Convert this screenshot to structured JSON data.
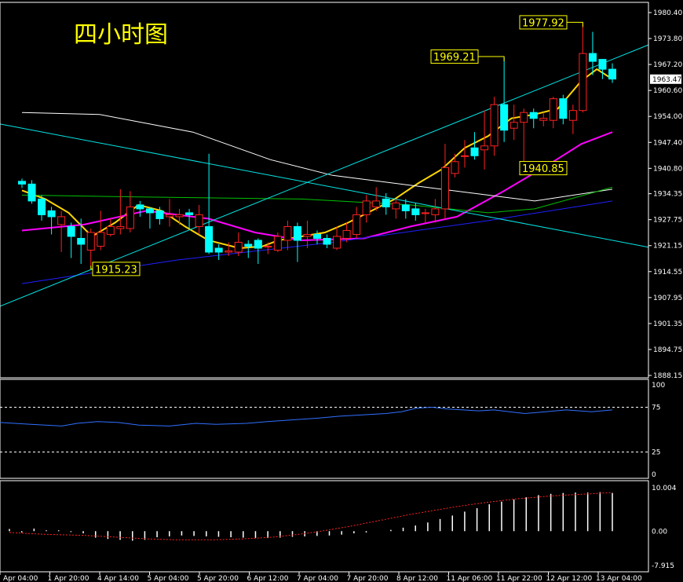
{
  "chart_data": {
    "type": "candlestick",
    "title": "四小时图",
    "price_axis": {
      "ylim": [
        1888.15,
        1980.4
      ],
      "ticks": [
        "1980.40",
        "1973.80",
        "1967.20",
        "1960.60",
        "1954.00",
        "1947.40",
        "1940.80",
        "1934.35",
        "1927.75",
        "1921.15",
        "1914.55",
        "1907.95",
        "1901.35",
        "1894.75",
        "1888.15"
      ],
      "current_price": "1963.47"
    },
    "time_labels": [
      "Apr 04:00",
      "1 Apr 20:00",
      "4 Apr 14:00",
      "5 Apr 04:00",
      "5 Apr 20:00",
      "6 Apr 12:00",
      "7 Apr 04:00",
      "7 Apr 20:00",
      "8 Apr 12:00",
      "11 Apr 06:00",
      "11 Apr 22:00",
      "12 Apr 12:00",
      "13 Apr 04:00"
    ],
    "annotations": [
      {
        "text": "1977.92",
        "value": 1977.92
      },
      {
        "text": "1969.21",
        "value": 1969.21
      },
      {
        "text": "1940.85",
        "value": 1940.85
      },
      {
        "text": "1915.23",
        "value": 1915.23
      }
    ],
    "candles": [
      [
        1937.5,
        1936.8,
        1938.2,
        1935.8
      ],
      [
        1936.8,
        1932.5,
        1937.8,
        1931.8
      ],
      [
        1933.0,
        1929.0,
        1934.0,
        1927.5
      ],
      [
        1930.0,
        1928.5,
        1931.0,
        1924.0
      ],
      [
        1926.5,
        1928.5,
        1930.0,
        1919.5
      ],
      [
        1926.0,
        1923.5,
        1927.0,
        1918.0
      ],
      [
        1923.0,
        1921.5,
        1928.0,
        1916.5
      ],
      [
        1920.0,
        1924.5,
        1925.5,
        1916.0
      ],
      [
        1921.0,
        1924.5,
        1930.0,
        1920.0
      ],
      [
        1924.0,
        1926.0,
        1928.0,
        1923.5
      ],
      [
        1925.5,
        1926.0,
        1935.5,
        1924.0
      ],
      [
        1925.5,
        1931.0,
        1935.0,
        1924.5
      ],
      [
        1931.5,
        1930.5,
        1932.5,
        1928.5
      ],
      [
        1930.5,
        1929.5,
        1931.0,
        1925.5
      ],
      [
        1930.0,
        1928.0,
        1931.0,
        1926.5
      ],
      [
        1928.5,
        1929.0,
        1933.0,
        1926.0
      ],
      [
        1928.5,
        1929.0,
        1930.5,
        1926.5
      ],
      [
        1929.5,
        1929.0,
        1930.5,
        1925.5
      ],
      [
        1926.0,
        1929.0,
        1931.5,
        1924.0
      ],
      [
        1926.0,
        1919.5,
        1944.5,
        1919.0
      ],
      [
        1920.5,
        1919.5,
        1921.5,
        1917.5
      ],
      [
        1919.5,
        1919.8,
        1922.0,
        1918.5
      ],
      [
        1919.5,
        1922.0,
        1924.5,
        1918.5
      ],
      [
        1921.5,
        1921.0,
        1922.5,
        1918.0
      ],
      [
        1922.5,
        1920.5,
        1923.0,
        1916.5
      ],
      [
        1921.0,
        1921.0,
        1922.0,
        1919.0
      ],
      [
        1920.0,
        1923.5,
        1924.5,
        1919.5
      ],
      [
        1922.5,
        1926.0,
        1927.5,
        1920.0
      ],
      [
        1926.0,
        1922.5,
        1927.0,
        1917.0
      ],
      [
        1923.5,
        1924.0,
        1927.5,
        1920.5
      ],
      [
        1924.0,
        1923.0,
        1925.0,
        1921.5
      ],
      [
        1923.0,
        1921.5,
        1924.0,
        1920.5
      ],
      [
        1920.5,
        1923.5,
        1926.0,
        1920.0
      ],
      [
        1923.0,
        1925.0,
        1927.0,
        1922.0
      ],
      [
        1924.0,
        1929.0,
        1931.0,
        1923.0
      ],
      [
        1929.0,
        1932.5,
        1934.0,
        1927.0
      ],
      [
        1931.0,
        1932.5,
        1936.0,
        1930.0
      ],
      [
        1933.0,
        1931.0,
        1934.5,
        1929.0
      ],
      [
        1930.5,
        1932.0,
        1933.0,
        1928.0
      ],
      [
        1931.5,
        1930.0,
        1933.0,
        1928.0
      ],
      [
        1930.5,
        1929.0,
        1932.0,
        1927.5
      ],
      [
        1929.5,
        1929.5,
        1930.5,
        1927.0
      ],
      [
        1929.0,
        1930.5,
        1933.0,
        1927.0
      ],
      [
        1930.5,
        1941.0,
        1947.0,
        1928.0
      ],
      [
        1939.5,
        1942.5,
        1944.5,
        1938.5
      ],
      [
        1944.0,
        1944.0,
        1948.0,
        1941.0
      ],
      [
        1946.0,
        1944.0,
        1950.0,
        1943.0
      ],
      [
        1945.5,
        1946.5,
        1955.5,
        1940.5
      ],
      [
        1946.5,
        1957.0,
        1959.0,
        1944.0
      ],
      [
        1957.0,
        1950.5,
        1969.0,
        1947.5
      ],
      [
        1951.0,
        1952.5,
        1957.0,
        1948.0
      ],
      [
        1952.5,
        1955.0,
        1956.0,
        1940.8
      ],
      [
        1955.0,
        1953.5,
        1956.0,
        1951.0
      ],
      [
        1953.0,
        1953.5,
        1955.0,
        1951.5
      ],
      [
        1953.0,
        1958.5,
        1959.0,
        1951.0
      ],
      [
        1958.5,
        1953.5,
        1959.5,
        1952.0
      ],
      [
        1953.0,
        1955.5,
        1957.0,
        1949.5
      ],
      [
        1955.5,
        1970.0,
        1977.9,
        1955.0
      ],
      [
        1970.0,
        1968.0,
        1975.5,
        1964.5
      ],
      [
        1968.5,
        1966.0,
        1968.5,
        1963.5
      ],
      [
        1966.0,
        1963.5,
        1967.5,
        1962.5
      ]
    ],
    "moving_averages": [
      {
        "color": "#ffd700",
        "values": [
          [
            0,
            1935.2
          ],
          [
            3,
            1933.0
          ],
          [
            6,
            1929.5
          ],
          [
            9,
            1923.5
          ],
          [
            12,
            1927.0
          ],
          [
            15,
            1931.5
          ],
          [
            18,
            1930.0
          ],
          [
            21,
            1926.0
          ],
          [
            24,
            1922.5
          ],
          [
            28,
            1920.5
          ],
          [
            31,
            1921.0
          ],
          [
            33,
            1922.5
          ],
          [
            36,
            1923.5
          ],
          [
            39,
            1924.5
          ],
          [
            42,
            1927.0
          ],
          [
            45,
            1930.0
          ],
          [
            48,
            1933.0
          ],
          [
            51,
            1937.0
          ],
          [
            54,
            1940.5
          ],
          [
            57,
            1946.0
          ],
          [
            60,
            1949.0
          ],
          [
            63,
            1953.5
          ],
          [
            66,
            1954.5
          ],
          [
            69,
            1956.0
          ],
          [
            72,
            1963.0
          ],
          [
            74,
            1966.0
          ],
          [
            76,
            1963.5
          ]
        ]
      },
      {
        "color": "#ff00ff",
        "values": [
          [
            0,
            1925.0
          ],
          [
            8,
            1926.5
          ],
          [
            16,
            1930.0
          ],
          [
            24,
            1928.0
          ],
          [
            30,
            1924.5
          ],
          [
            36,
            1922.5
          ],
          [
            44,
            1923.0
          ],
          [
            50,
            1926.0
          ],
          [
            56,
            1928.5
          ],
          [
            62,
            1935.0
          ],
          [
            68,
            1942.0
          ],
          [
            72,
            1947.0
          ],
          [
            76,
            1950.0
          ]
        ]
      },
      {
        "color": "#ffffff",
        "values": [
          [
            0,
            1955.0
          ],
          [
            10,
            1954.5
          ],
          [
            22,
            1950.0
          ],
          [
            32,
            1943.0
          ],
          [
            40,
            1939.0
          ],
          [
            50,
            1936.5
          ],
          [
            60,
            1934.0
          ],
          [
            66,
            1932.5
          ],
          [
            76,
            1935.5
          ]
        ]
      },
      {
        "color": "#00c000",
        "values": [
          [
            0,
            1934.0
          ],
          [
            16,
            1933.5
          ],
          [
            36,
            1933.0
          ],
          [
            50,
            1931.5
          ],
          [
            60,
            1929.5
          ],
          [
            66,
            1930.5
          ],
          [
            76,
            1936.0
          ]
        ]
      },
      {
        "color": "#2020ff",
        "values": [
          [
            0,
            1911.5
          ],
          [
            20,
            1917.5
          ],
          [
            40,
            1922.0
          ],
          [
            60,
            1927.5
          ],
          [
            76,
            1932.5
          ]
        ]
      },
      {
        "color": "#00e5e5",
        "values": [
          [
            0,
            1951.0
          ],
          [
            76,
            1922.5
          ]
        ]
      },
      {
        "color": "#00e5e5",
        "values": [
          [
            0,
            1908.0
          ],
          [
            76,
            1968.5
          ]
        ]
      }
    ],
    "rsi": {
      "ylim": [
        0,
        100
      ],
      "ticks": [
        "100",
        "75",
        "25",
        "0"
      ],
      "levels": [
        75,
        25
      ],
      "values": [
        [
          0,
          58
        ],
        [
          6,
          56
        ],
        [
          12,
          54
        ],
        [
          15,
          57
        ],
        [
          19,
          59
        ],
        [
          23,
          58
        ],
        [
          27,
          55
        ],
        [
          33,
          54
        ],
        [
          38,
          57
        ],
        [
          42,
          56
        ],
        [
          48,
          57
        ],
        [
          52,
          59
        ],
        [
          57,
          61
        ],
        [
          62,
          63
        ],
        [
          66,
          65
        ],
        [
          69,
          66
        ],
        [
          72,
          67
        ],
        [
          75,
          68
        ],
        [
          78,
          70
        ],
        [
          81,
          74
        ],
        [
          84,
          75
        ],
        [
          87,
          73
        ],
        [
          90,
          72
        ],
        [
          93,
          71
        ],
        [
          96,
          72
        ],
        [
          99,
          70
        ],
        [
          102,
          68
        ],
        [
          106,
          70
        ],
        [
          110,
          72
        ],
        [
          115,
          70
        ],
        [
          119,
          72
        ]
      ]
    },
    "histogram": {
      "ylim": [
        -7.915,
        10.004
      ],
      "ticks": [
        "10.004",
        "0.00",
        "-7.915"
      ],
      "bars": [
        0.5,
        -0.3,
        0.6,
        0.2,
        0.2,
        -0.2,
        -0.5,
        -1.5,
        -1.8,
        -2.0,
        -2.2,
        -2.0,
        -1.4,
        -1.2,
        -1.0,
        -1.1,
        -1.2,
        -1.3,
        -1.4,
        -1.5,
        -1.6,
        -1.6,
        -1.5,
        -1.3,
        -1.2,
        -1.1,
        -1.0,
        -0.8,
        -0.5,
        -0.3,
        0.0,
        0.3,
        0.8,
        1.3,
        2.0,
        2.8,
        3.6,
        4.5,
        5.3,
        6.2,
        6.8,
        7.3,
        7.8,
        8.3,
        8.6,
        8.8,
        8.9,
        8.9,
        9.0,
        8.8
      ],
      "signal": [
        -0.3,
        -0.5,
        -0.7,
        -0.8,
        -0.9,
        -1.0,
        -1.2,
        -1.4,
        -1.6,
        -1.8,
        -1.9,
        -2.0,
        -2.0,
        -2.0,
        -1.9,
        -1.8,
        -1.6,
        -1.4,
        -1.0,
        -0.6,
        -0.1,
        0.5,
        1.1,
        1.8,
        2.5,
        3.2,
        3.9,
        4.5,
        5.1,
        5.7,
        6.2,
        6.7,
        7.1,
        7.5,
        7.8,
        8.1,
        8.3,
        8.5,
        8.7,
        8.9
      ]
    }
  }
}
